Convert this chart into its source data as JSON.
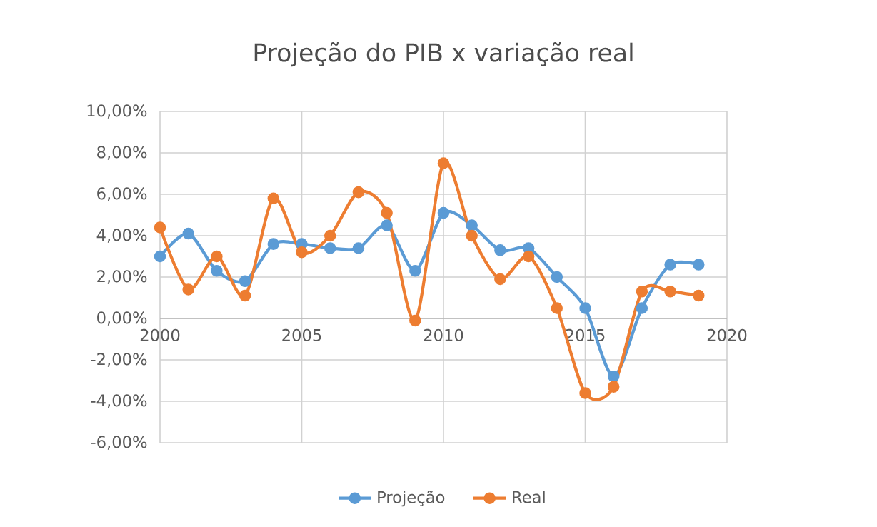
{
  "chart_data": {
    "type": "line",
    "title": "Projeção do PIB x variação real",
    "x": [
      2000,
      2001,
      2002,
      2003,
      2004,
      2005,
      2006,
      2007,
      2008,
      2009,
      2010,
      2011,
      2012,
      2013,
      2014,
      2015,
      2016,
      2017,
      2018,
      2019
    ],
    "series": [
      {
        "name": "Projeção",
        "color": "#5b9bd5",
        "values": [
          3.0,
          4.1,
          2.3,
          1.8,
          3.6,
          3.6,
          3.4,
          3.4,
          4.5,
          2.3,
          5.1,
          4.5,
          3.3,
          3.4,
          2.0,
          0.5,
          -2.8,
          0.5,
          2.6,
          2.6
        ]
      },
      {
        "name": "Real",
        "color": "#ed7d31",
        "values": [
          4.4,
          1.4,
          3.0,
          1.1,
          5.8,
          3.2,
          4.0,
          6.1,
          5.1,
          -0.1,
          7.5,
          4.0,
          1.9,
          3.0,
          0.5,
          -3.6,
          -3.3,
          1.3,
          1.3,
          1.1
        ]
      }
    ],
    "xlim": [
      2000,
      2020
    ],
    "xticks": [
      2000,
      2005,
      2010,
      2015,
      2020
    ],
    "ylim": [
      -6,
      10
    ],
    "yticks": [
      {
        "value": -6,
        "label": "-6,00%"
      },
      {
        "value": -4,
        "label": "-4,00%"
      },
      {
        "value": -2,
        "label": "-2,00%"
      },
      {
        "value": 0,
        "label": "0,00%"
      },
      {
        "value": 2,
        "label": "2,00%"
      },
      {
        "value": 4,
        "label": "4,00%"
      },
      {
        "value": 6,
        "label": "6,00%"
      },
      {
        "value": 8,
        "label": "8,00%"
      },
      {
        "value": 10,
        "label": "10,00%"
      }
    ],
    "grid": true,
    "legend": "bottom",
    "marker": "circle",
    "line_style": "solid"
  }
}
